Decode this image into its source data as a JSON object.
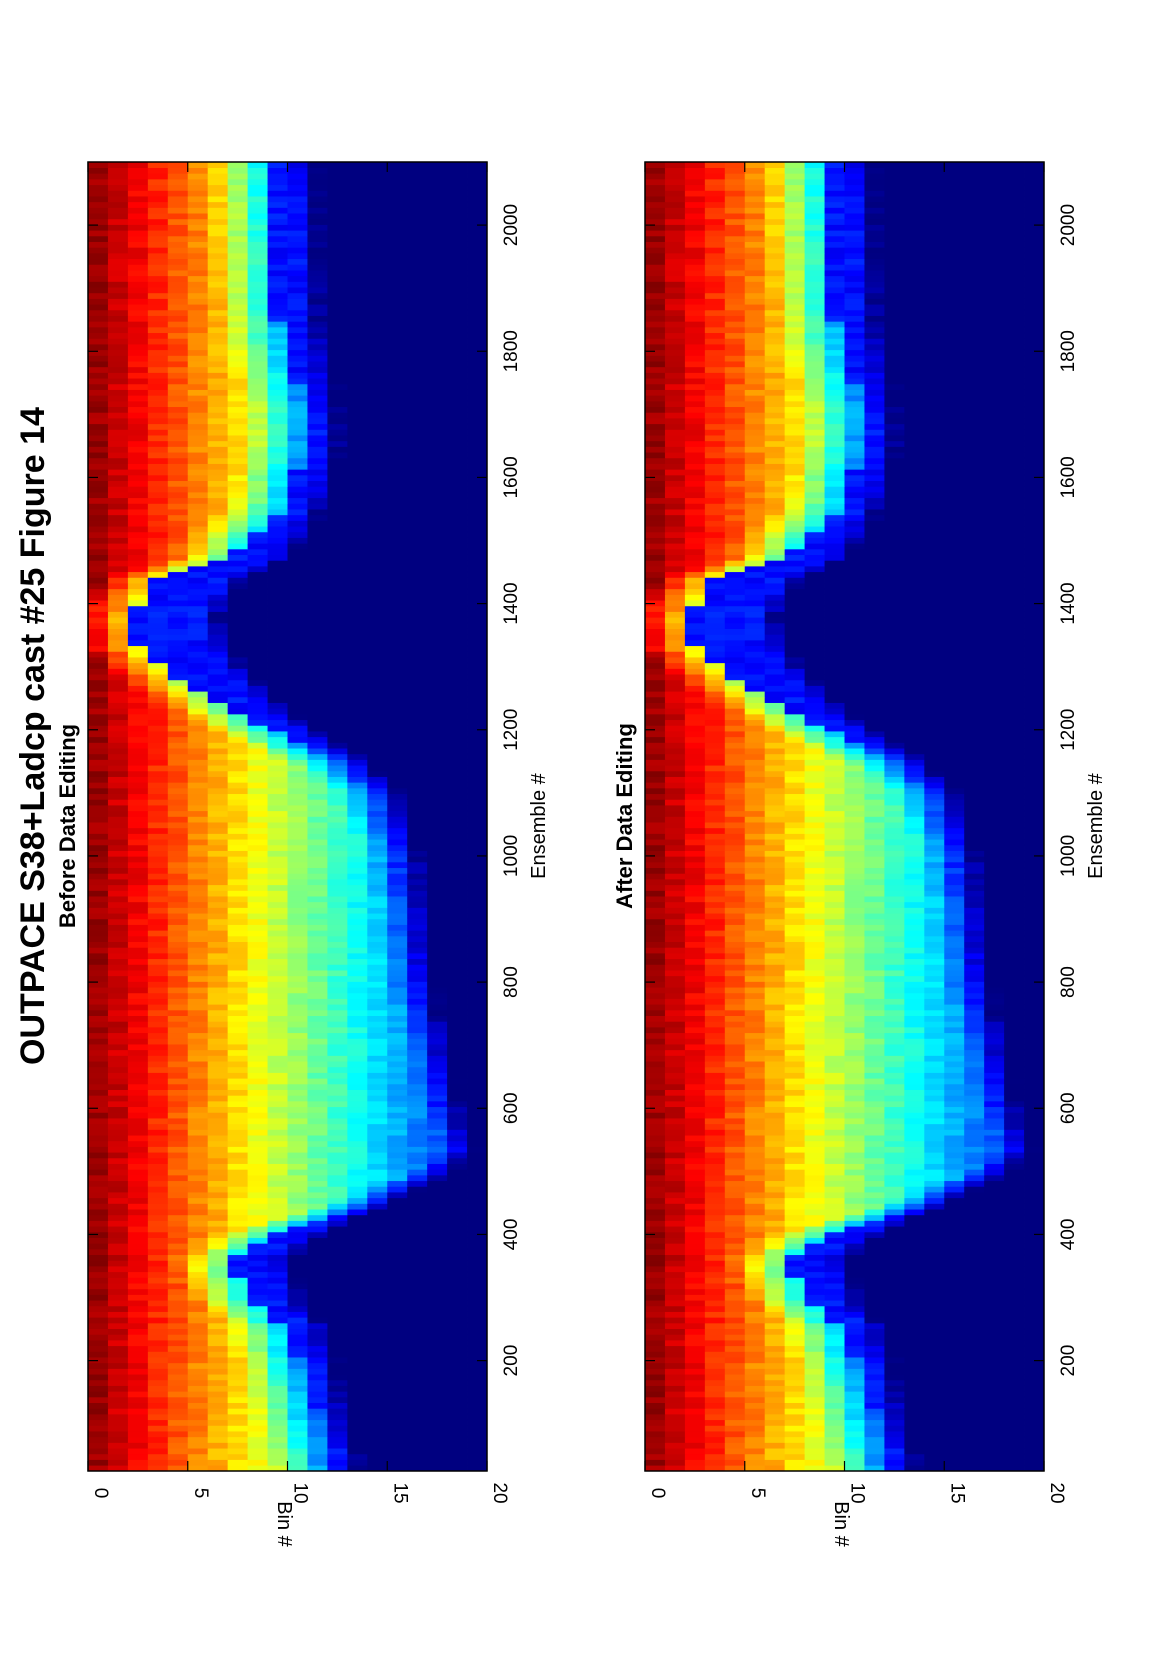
{
  "figure": {
    "title": "OUTPACE S38+Ladcp cast #25  Figure 14"
  },
  "chart_data": [
    {
      "type": "heatmap",
      "title": "Before Data Editing",
      "xlabel": "Ensemble #",
      "ylabel": "Bin #",
      "xlim": [
        25,
        2100
      ],
      "ylim": [
        0,
        20
      ],
      "xticks": [
        "200",
        "400",
        "600",
        "800",
        "1000",
        "1200",
        "1400",
        "1600",
        "1800",
        "2000"
      ],
      "yticks": [
        "0",
        "5",
        "10",
        "15",
        "20"
      ],
      "colormap": "jet",
      "profile_x": [
        25,
        120,
        250,
        300,
        360,
        400,
        440,
        490,
        530,
        600,
        800,
        1000,
        1100,
        1150,
        1200,
        1270,
        1330,
        1380,
        1440,
        1470,
        1560,
        1640,
        1700,
        1790,
        1850,
        2000,
        2100
      ],
      "profile_depth": [
        11.5,
        10.5,
        9,
        7,
        6,
        8.5,
        13,
        17.5,
        20,
        19,
        17,
        16,
        14.5,
        12,
        8,
        4,
        1.5,
        1,
        2.5,
        6,
        9,
        9.8,
        10,
        9,
        8.5,
        8.2,
        8
      ]
    },
    {
      "type": "heatmap",
      "title": "After Data Editing",
      "xlabel": "Ensemble #",
      "ylabel": "Bin #",
      "xlim": [
        25,
        2100
      ],
      "ylim": [
        0,
        20
      ],
      "xticks": [
        "200",
        "400",
        "600",
        "800",
        "1000",
        "1200",
        "1400",
        "1600",
        "1800",
        "2000"
      ],
      "yticks": [
        "0",
        "5",
        "10",
        "15",
        "20"
      ],
      "colormap": "jet",
      "profile_x": [
        25,
        120,
        250,
        300,
        360,
        400,
        440,
        490,
        530,
        600,
        800,
        1000,
        1100,
        1150,
        1200,
        1270,
        1330,
        1380,
        1440,
        1470,
        1560,
        1640,
        1700,
        1790,
        1850,
        2000,
        2100
      ],
      "profile_depth": [
        11.5,
        10.5,
        9,
        7,
        6,
        8.5,
        13,
        17.5,
        20,
        19,
        17,
        16,
        14.5,
        12,
        8,
        4,
        1.5,
        1,
        2.5,
        6,
        9,
        9.8,
        10,
        9,
        8.5,
        8.2,
        8
      ]
    }
  ]
}
